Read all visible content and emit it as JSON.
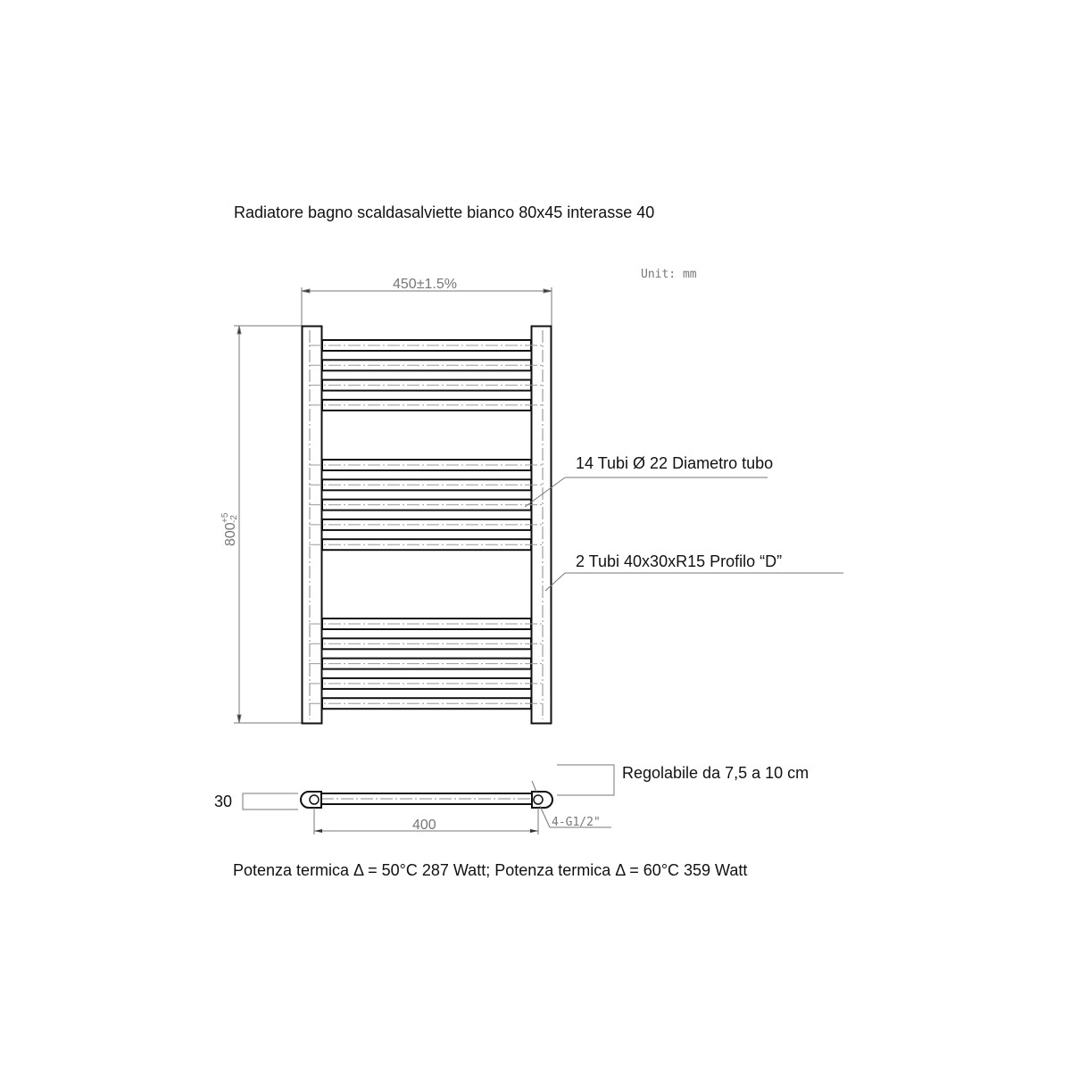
{
  "title": "Radiatore bagno scaldasalviette bianco 80x45 interasse 40",
  "unit_label": "Unit: mm",
  "dimensions": {
    "width": "450±1.5%",
    "height": "800",
    "height_tolerance_plus": "+5",
    "height_tolerance_minus": "-2",
    "depth": "30",
    "interaxis": "400",
    "connection": "4-G1/2\""
  },
  "callouts": {
    "tubes": "14 Tubi Ø 22 Diametro tubo",
    "profile": "2 Tubi 40x30xR15   Profilo “D”",
    "adjustable": "Regolabile da 7,5 a 10 cm"
  },
  "tube_groups": [
    4,
    5,
    5
  ],
  "footer": "Potenza termica Δ = 50°C 287 Watt; Potenza termica Δ = 60°C 359 Watt"
}
